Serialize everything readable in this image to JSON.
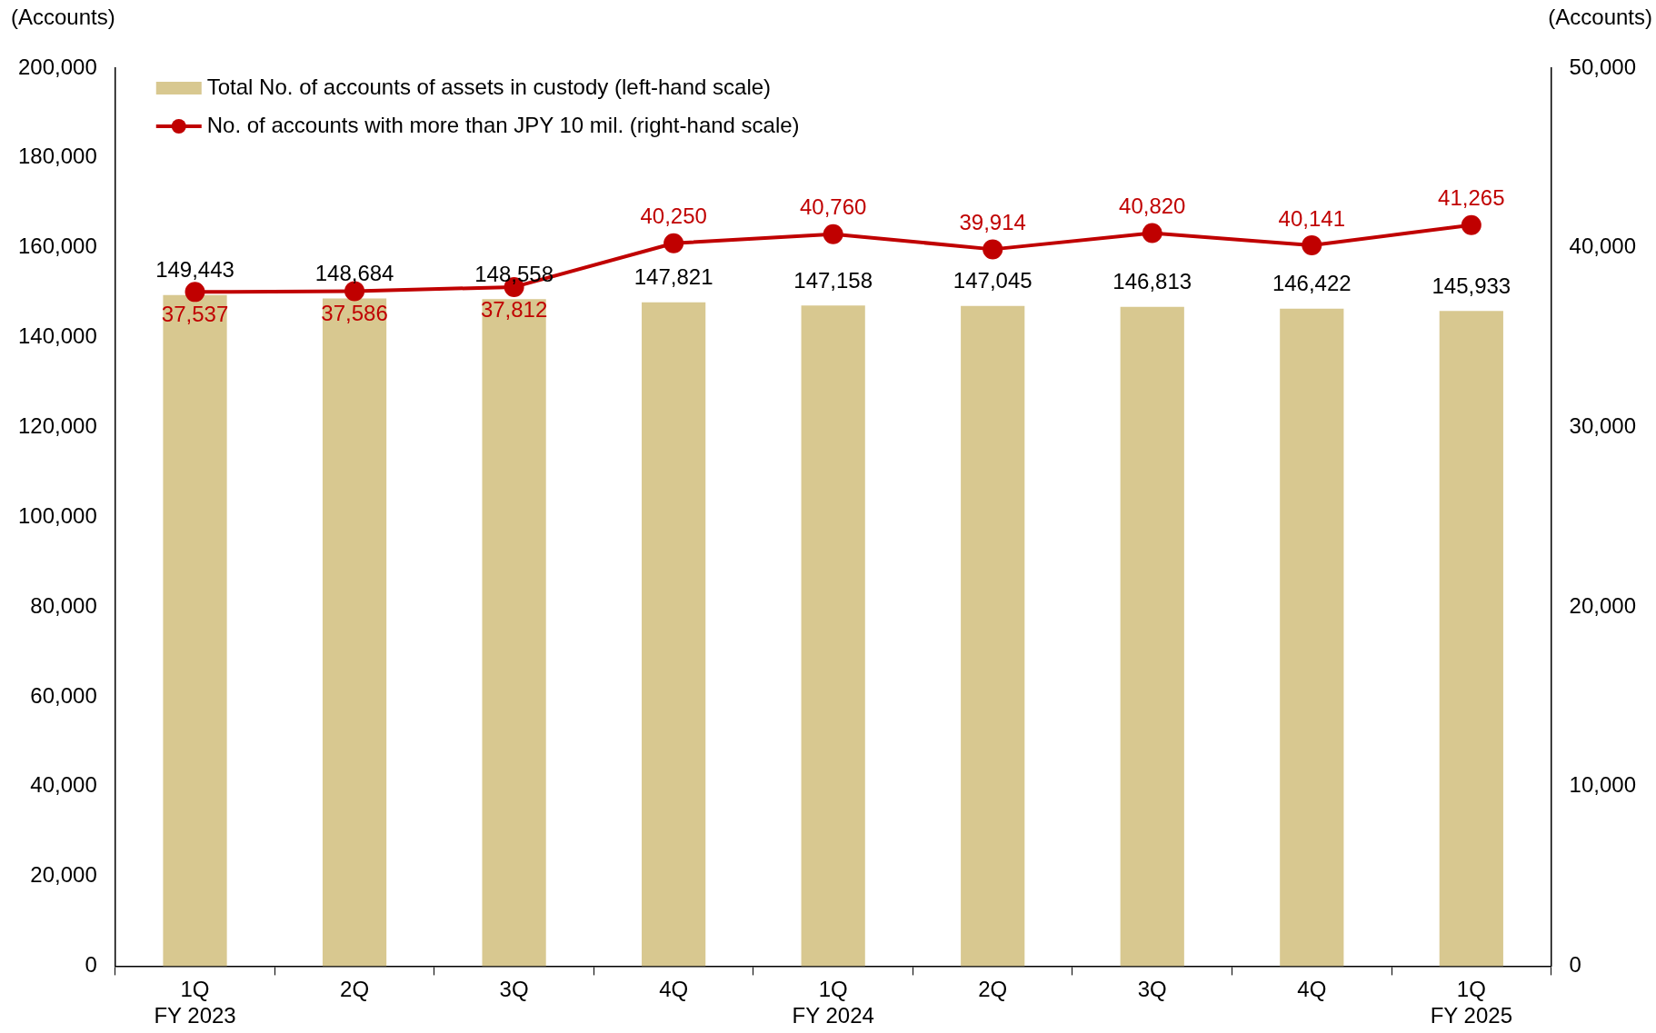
{
  "chart_data": {
    "type": "bar",
    "ylabel": "(Accounts)",
    "y2label": "(Accounts)",
    "categories": [
      "1Q\nFY 2023",
      "2Q",
      "3Q",
      "4Q",
      "1Q\nFY 2024",
      "2Q",
      "3Q",
      "4Q",
      "1Q\nFY 2025"
    ],
    "series": [
      {
        "name": "Total No. of accounts of assets in custody (left-hand scale)",
        "color": "#d8c890",
        "values": [
          149443,
          148684,
          148558,
          147821,
          147158,
          147045,
          146813,
          146422,
          145933
        ],
        "value_labels": [
          "149,443",
          "148,684",
          "148,558",
          "147,821",
          "147,158",
          "147,045",
          "146,813",
          "146,422",
          "145,933"
        ]
      },
      {
        "name": "No. of accounts with more than JPY 10 mil. (right-hand scale)",
        "type": "line",
        "axis": "y2",
        "color": "#c00000",
        "marker": "circle",
        "values": [
          37537,
          37586,
          37812,
          40250,
          40760,
          39914,
          40820,
          40141,
          41265
        ],
        "value_labels": [
          "37,537",
          "37,586",
          "37,812",
          "40,250",
          "40,760",
          "39,914",
          "40,820",
          "40,141",
          "41,265"
        ]
      }
    ],
    "ylim": [
      0,
      200000
    ],
    "yticks": [
      {
        "value": 0,
        "label": "0"
      },
      {
        "value": 20000,
        "label": "20,000"
      },
      {
        "value": 40000,
        "label": "40,000"
      },
      {
        "value": 60000,
        "label": "60,000"
      },
      {
        "value": 80000,
        "label": "80,000"
      },
      {
        "value": 100000,
        "label": "100,000"
      },
      {
        "value": 120000,
        "label": "120,000"
      },
      {
        "value": 140000,
        "label": "140,000"
      },
      {
        "value": 160000,
        "label": "160,000"
      },
      {
        "value": 180000,
        "label": "180,000"
      },
      {
        "value": 200000,
        "label": "200,000"
      }
    ],
    "y2lim": [
      0,
      50000
    ],
    "y2ticks": [
      {
        "value": 0,
        "label": "0"
      },
      {
        "value": 10000,
        "label": "10,000"
      },
      {
        "value": 20000,
        "label": "20,000"
      },
      {
        "value": 30000,
        "label": "30,000"
      },
      {
        "value": 40000,
        "label": "40,000"
      },
      {
        "value": 50000,
        "label": "50,000"
      }
    ],
    "legend": "top left",
    "grid": false
  }
}
